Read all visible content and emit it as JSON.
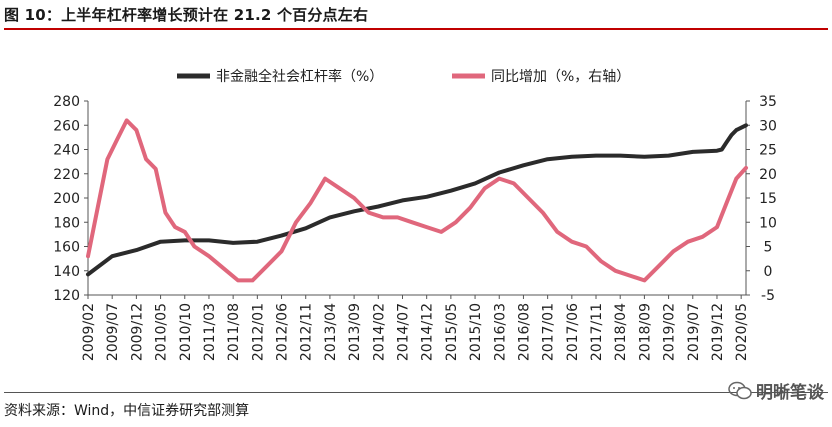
{
  "figure": {
    "title": "图 10：上半年杠杆率增长预计在 21.2 个百分点左右",
    "source": "资料来源：Wind，中信证券研究部测算",
    "watermark": "明晰笔谈"
  },
  "colors": {
    "rule": "#c00000",
    "leverage": "#2b2b2b",
    "yoy": "#e0677c"
  },
  "chart_data": {
    "type": "line",
    "legend_position": "top",
    "grid": false,
    "y_left": {
      "min": 120,
      "max": 280,
      "ticks": [
        120,
        140,
        160,
        180,
        200,
        220,
        240,
        260,
        280
      ]
    },
    "y_right": {
      "min": -5,
      "max": 35,
      "ticks": [
        -5,
        0,
        5,
        10,
        15,
        20,
        25,
        30,
        35
      ]
    },
    "x_tick_labels": [
      "2009/02",
      "2009/07",
      "2009/12",
      "2010/05",
      "2010/10",
      "2011/03",
      "2011/08",
      "2012/01",
      "2012/06",
      "2012/11",
      "2013/04",
      "2013/09",
      "2014/02",
      "2014/07",
      "2014/12",
      "2015/05",
      "2015/10",
      "2016/03",
      "2016/08",
      "2017/01",
      "2017/06",
      "2017/11",
      "2018/04",
      "2018/09",
      "2019/02",
      "2019/07",
      "2019/12",
      "2020/05"
    ],
    "series": [
      {
        "name": "非金融全社会杠杆率（%）",
        "axis": "left",
        "x": [
          "2009/02",
          "2009/07",
          "2009/12",
          "2010/05",
          "2010/10",
          "2011/03",
          "2011/08",
          "2012/01",
          "2012/06",
          "2012/11",
          "2013/04",
          "2013/09",
          "2014/02",
          "2014/07",
          "2014/12",
          "2015/05",
          "2015/10",
          "2016/03",
          "2016/08",
          "2017/01",
          "2017/06",
          "2017/11",
          "2018/04",
          "2018/09",
          "2019/02",
          "2019/07",
          "2019/12",
          "2020/01",
          "2020/02",
          "2020/03",
          "2020/04",
          "2020/05",
          "2020/06"
        ],
        "values": [
          137,
          152,
          157,
          164,
          165,
          165,
          163,
          164,
          169,
          175,
          184,
          189,
          193,
          198,
          201,
          206,
          212,
          221,
          227,
          232,
          234,
          235,
          235,
          234,
          235,
          238,
          239,
          240,
          246,
          252,
          256,
          258,
          260
        ]
      },
      {
        "name": "同比增加（%，右轴）",
        "axis": "right",
        "x": [
          "2009/02",
          "2009/04",
          "2009/06",
          "2009/08",
          "2009/10",
          "2009/12",
          "2010/02",
          "2010/04",
          "2010/06",
          "2010/08",
          "2010/10",
          "2010/12",
          "2011/03",
          "2011/06",
          "2011/09",
          "2011/12",
          "2012/03",
          "2012/06",
          "2012/09",
          "2012/12",
          "2013/03",
          "2013/06",
          "2013/09",
          "2013/12",
          "2014/03",
          "2014/06",
          "2014/09",
          "2014/12",
          "2015/03",
          "2015/06",
          "2015/09",
          "2015/12",
          "2016/03",
          "2016/06",
          "2016/09",
          "2016/12",
          "2017/03",
          "2017/06",
          "2017/09",
          "2017/12",
          "2018/03",
          "2018/06",
          "2018/09",
          "2018/12",
          "2019/03",
          "2019/06",
          "2019/09",
          "2019/12",
          "2020/02",
          "2020/04",
          "2020/06"
        ],
        "values": [
          3,
          13,
          23,
          27,
          31,
          29,
          23,
          21,
          12,
          9,
          8,
          5,
          3,
          0.5,
          -2,
          -2,
          1,
          4,
          10,
          14,
          19,
          17,
          15,
          12,
          11,
          11,
          10,
          9,
          8,
          10,
          13,
          17,
          19,
          18,
          15,
          12,
          8,
          6,
          5,
          2,
          0,
          -1,
          -2,
          1,
          4,
          6,
          7,
          9,
          14,
          19,
          21.2
        ]
      }
    ]
  }
}
